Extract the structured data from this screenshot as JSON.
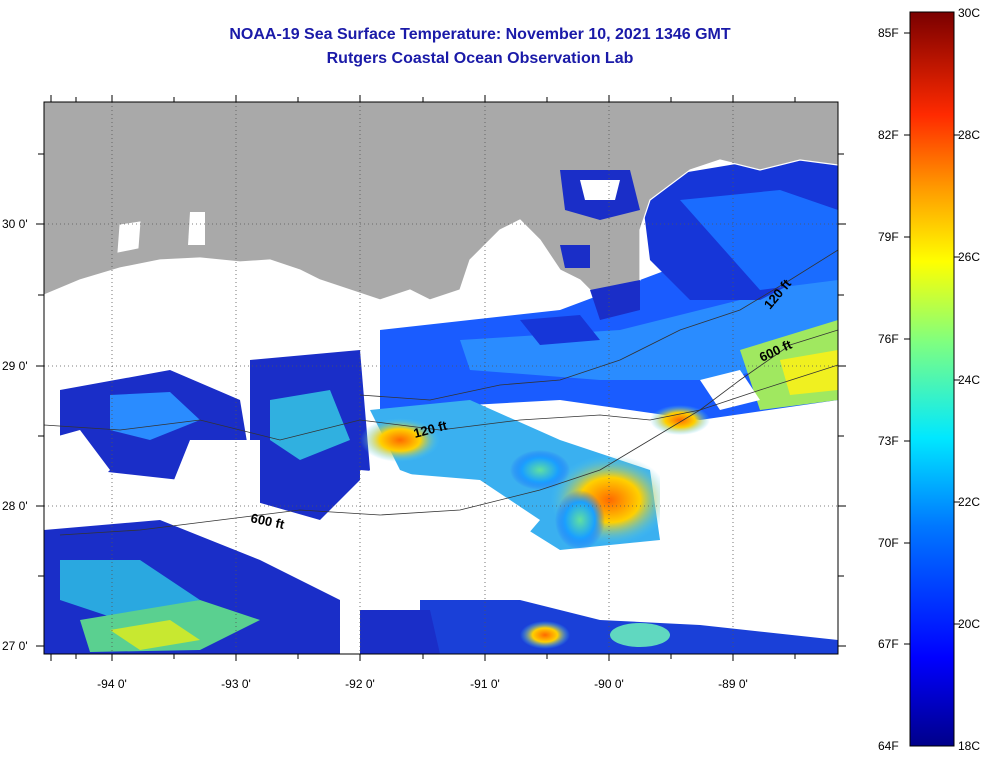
{
  "title": "NOAA-19 Sea Surface Temperature:  November 10, 2021 1346 GMT",
  "subtitle": "Rutgers Coastal Ocean Observation Lab",
  "axes": {
    "lon_labels": [
      {
        "value": -94,
        "text": "-94 0'"
      },
      {
        "value": -93,
        "text": "-93 0'"
      },
      {
        "value": -92,
        "text": "-92 0'"
      },
      {
        "value": -91,
        "text": "-91 0'"
      },
      {
        "value": -90,
        "text": "-90 0'"
      },
      {
        "value": -89,
        "text": "-89 0'"
      }
    ],
    "lat_labels": [
      {
        "value": 30,
        "text": "30 0'"
      },
      {
        "value": 29,
        "text": "29 0'"
      },
      {
        "value": 28,
        "text": "28 0'"
      },
      {
        "value": 27,
        "text": "27 0'"
      }
    ]
  },
  "contours": [
    {
      "text": "600 ft"
    },
    {
      "text": "120 ft"
    },
    {
      "text": "120 ft"
    },
    {
      "text": "600 ft"
    }
  ],
  "colorbar": {
    "fahrenheit": [
      "85F",
      "82F",
      "79F",
      "76F",
      "73F",
      "70F",
      "67F",
      "64F"
    ],
    "celsius": [
      "30C",
      "28C",
      "26C",
      "24C",
      "22C",
      "20C",
      "18C"
    ]
  },
  "colors": {
    "land": "#a9a9a9",
    "cloud": "#ffffff",
    "title": "#1a1aa8"
  }
}
